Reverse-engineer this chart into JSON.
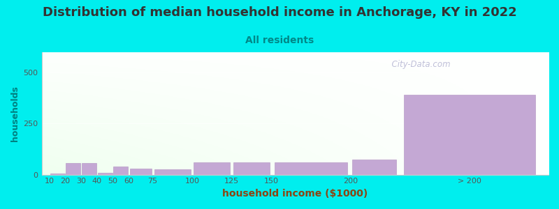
{
  "title": "Distribution of median household income in Anchorage, KY in 2022",
  "subtitle": "All residents",
  "xlabel": "household income ($1000)",
  "ylabel": "households",
  "background_color": "#00EEEE",
  "bar_color": "#c4a8d4",
  "bar_edge_color": "#b090c0",
  "categories": [
    "10",
    "20",
    "30",
    "40",
    "50",
    "60",
    "75",
    "100",
    "125",
    "150",
    "200",
    "> 200"
  ],
  "values": [
    4,
    55,
    55,
    8,
    38,
    30,
    25,
    60,
    60,
    60,
    75,
    390
  ],
  "bar_left_edges": [
    10,
    20,
    30,
    40,
    50,
    60,
    75,
    100,
    125,
    150,
    200,
    230
  ],
  "bar_widths": [
    10,
    10,
    10,
    10,
    10,
    15,
    25,
    25,
    25,
    50,
    30,
    90
  ],
  "tick_positions": [
    10,
    20,
    30,
    40,
    50,
    60,
    75,
    100,
    125,
    150,
    200,
    275
  ],
  "xlim": [
    5,
    325
  ],
  "ylim": [
    0,
    600
  ],
  "yticks": [
    0,
    250,
    500
  ],
  "title_fontsize": 13,
  "subtitle_fontsize": 10,
  "xlabel_fontsize": 10,
  "ylabel_fontsize": 9,
  "tick_fontsize": 8,
  "watermark": "  City-Data.com",
  "title_color": "#333333",
  "subtitle_color": "#008888",
  "xlabel_color": "#8B4513",
  "ylabel_color": "#008080",
  "tick_color": "#555555",
  "watermark_color": "#aaaacc"
}
